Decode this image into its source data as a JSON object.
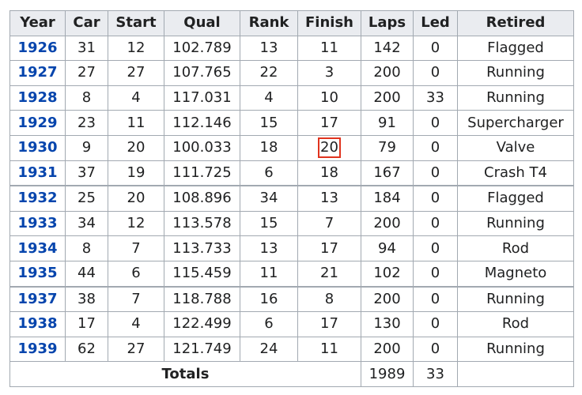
{
  "table": {
    "headers": [
      "Year",
      "Car",
      "Start",
      "Qual",
      "Rank",
      "Finish",
      "Laps",
      "Led",
      "Retired"
    ],
    "rows": [
      {
        "year": "1926",
        "car": "31",
        "start": "12",
        "qual": "102.789",
        "rank": "13",
        "finish": "11",
        "laps": "142",
        "led": "0",
        "retired": "Flagged"
      },
      {
        "year": "1927",
        "car": "27",
        "start": "27",
        "qual": "107.765",
        "rank": "22",
        "finish": "3",
        "laps": "200",
        "led": "0",
        "retired": "Running"
      },
      {
        "year": "1928",
        "car": "8",
        "start": "4",
        "qual": "117.031",
        "rank": "4",
        "finish": "10",
        "laps": "200",
        "led": "33",
        "retired": "Running"
      },
      {
        "year": "1929",
        "car": "23",
        "start": "11",
        "qual": "112.146",
        "rank": "15",
        "finish": "17",
        "laps": "91",
        "led": "0",
        "retired": "Supercharger"
      },
      {
        "year": "1930",
        "car": "9",
        "start": "20",
        "qual": "100.033",
        "rank": "18",
        "finish": "20",
        "laps": "79",
        "led": "0",
        "retired": "Valve"
      },
      {
        "year": "1931",
        "car": "37",
        "start": "19",
        "qual": "111.725",
        "rank": "6",
        "finish": "18",
        "laps": "167",
        "led": "0",
        "retired": "Crash T4"
      },
      {
        "year": "1932",
        "car": "25",
        "start": "20",
        "qual": "108.896",
        "rank": "34",
        "finish": "13",
        "laps": "184",
        "led": "0",
        "retired": "Flagged"
      },
      {
        "year": "1933",
        "car": "34",
        "start": "12",
        "qual": "113.578",
        "rank": "15",
        "finish": "7",
        "laps": "200",
        "led": "0",
        "retired": "Running"
      },
      {
        "year": "1934",
        "car": "8",
        "start": "7",
        "qual": "113.733",
        "rank": "13",
        "finish": "17",
        "laps": "94",
        "led": "0",
        "retired": "Rod"
      },
      {
        "year": "1935",
        "car": "44",
        "start": "6",
        "qual": "115.459",
        "rank": "11",
        "finish": "21",
        "laps": "102",
        "led": "0",
        "retired": "Magneto"
      },
      {
        "year": "1937",
        "car": "38",
        "start": "7",
        "qual": "118.788",
        "rank": "16",
        "finish": "8",
        "laps": "200",
        "led": "0",
        "retired": "Running"
      },
      {
        "year": "1938",
        "car": "17",
        "start": "4",
        "qual": "122.499",
        "rank": "6",
        "finish": "17",
        "laps": "130",
        "led": "0",
        "retired": "Rod"
      },
      {
        "year": "1939",
        "car": "62",
        "start": "27",
        "qual": "121.749",
        "rank": "24",
        "finish": "11",
        "laps": "200",
        "led": "0",
        "retired": "Running"
      }
    ],
    "totals": {
      "label": "Totals",
      "laps": "1989",
      "led": "33"
    },
    "link_color": "#0645ad",
    "highlight_color": "#e0331e"
  }
}
